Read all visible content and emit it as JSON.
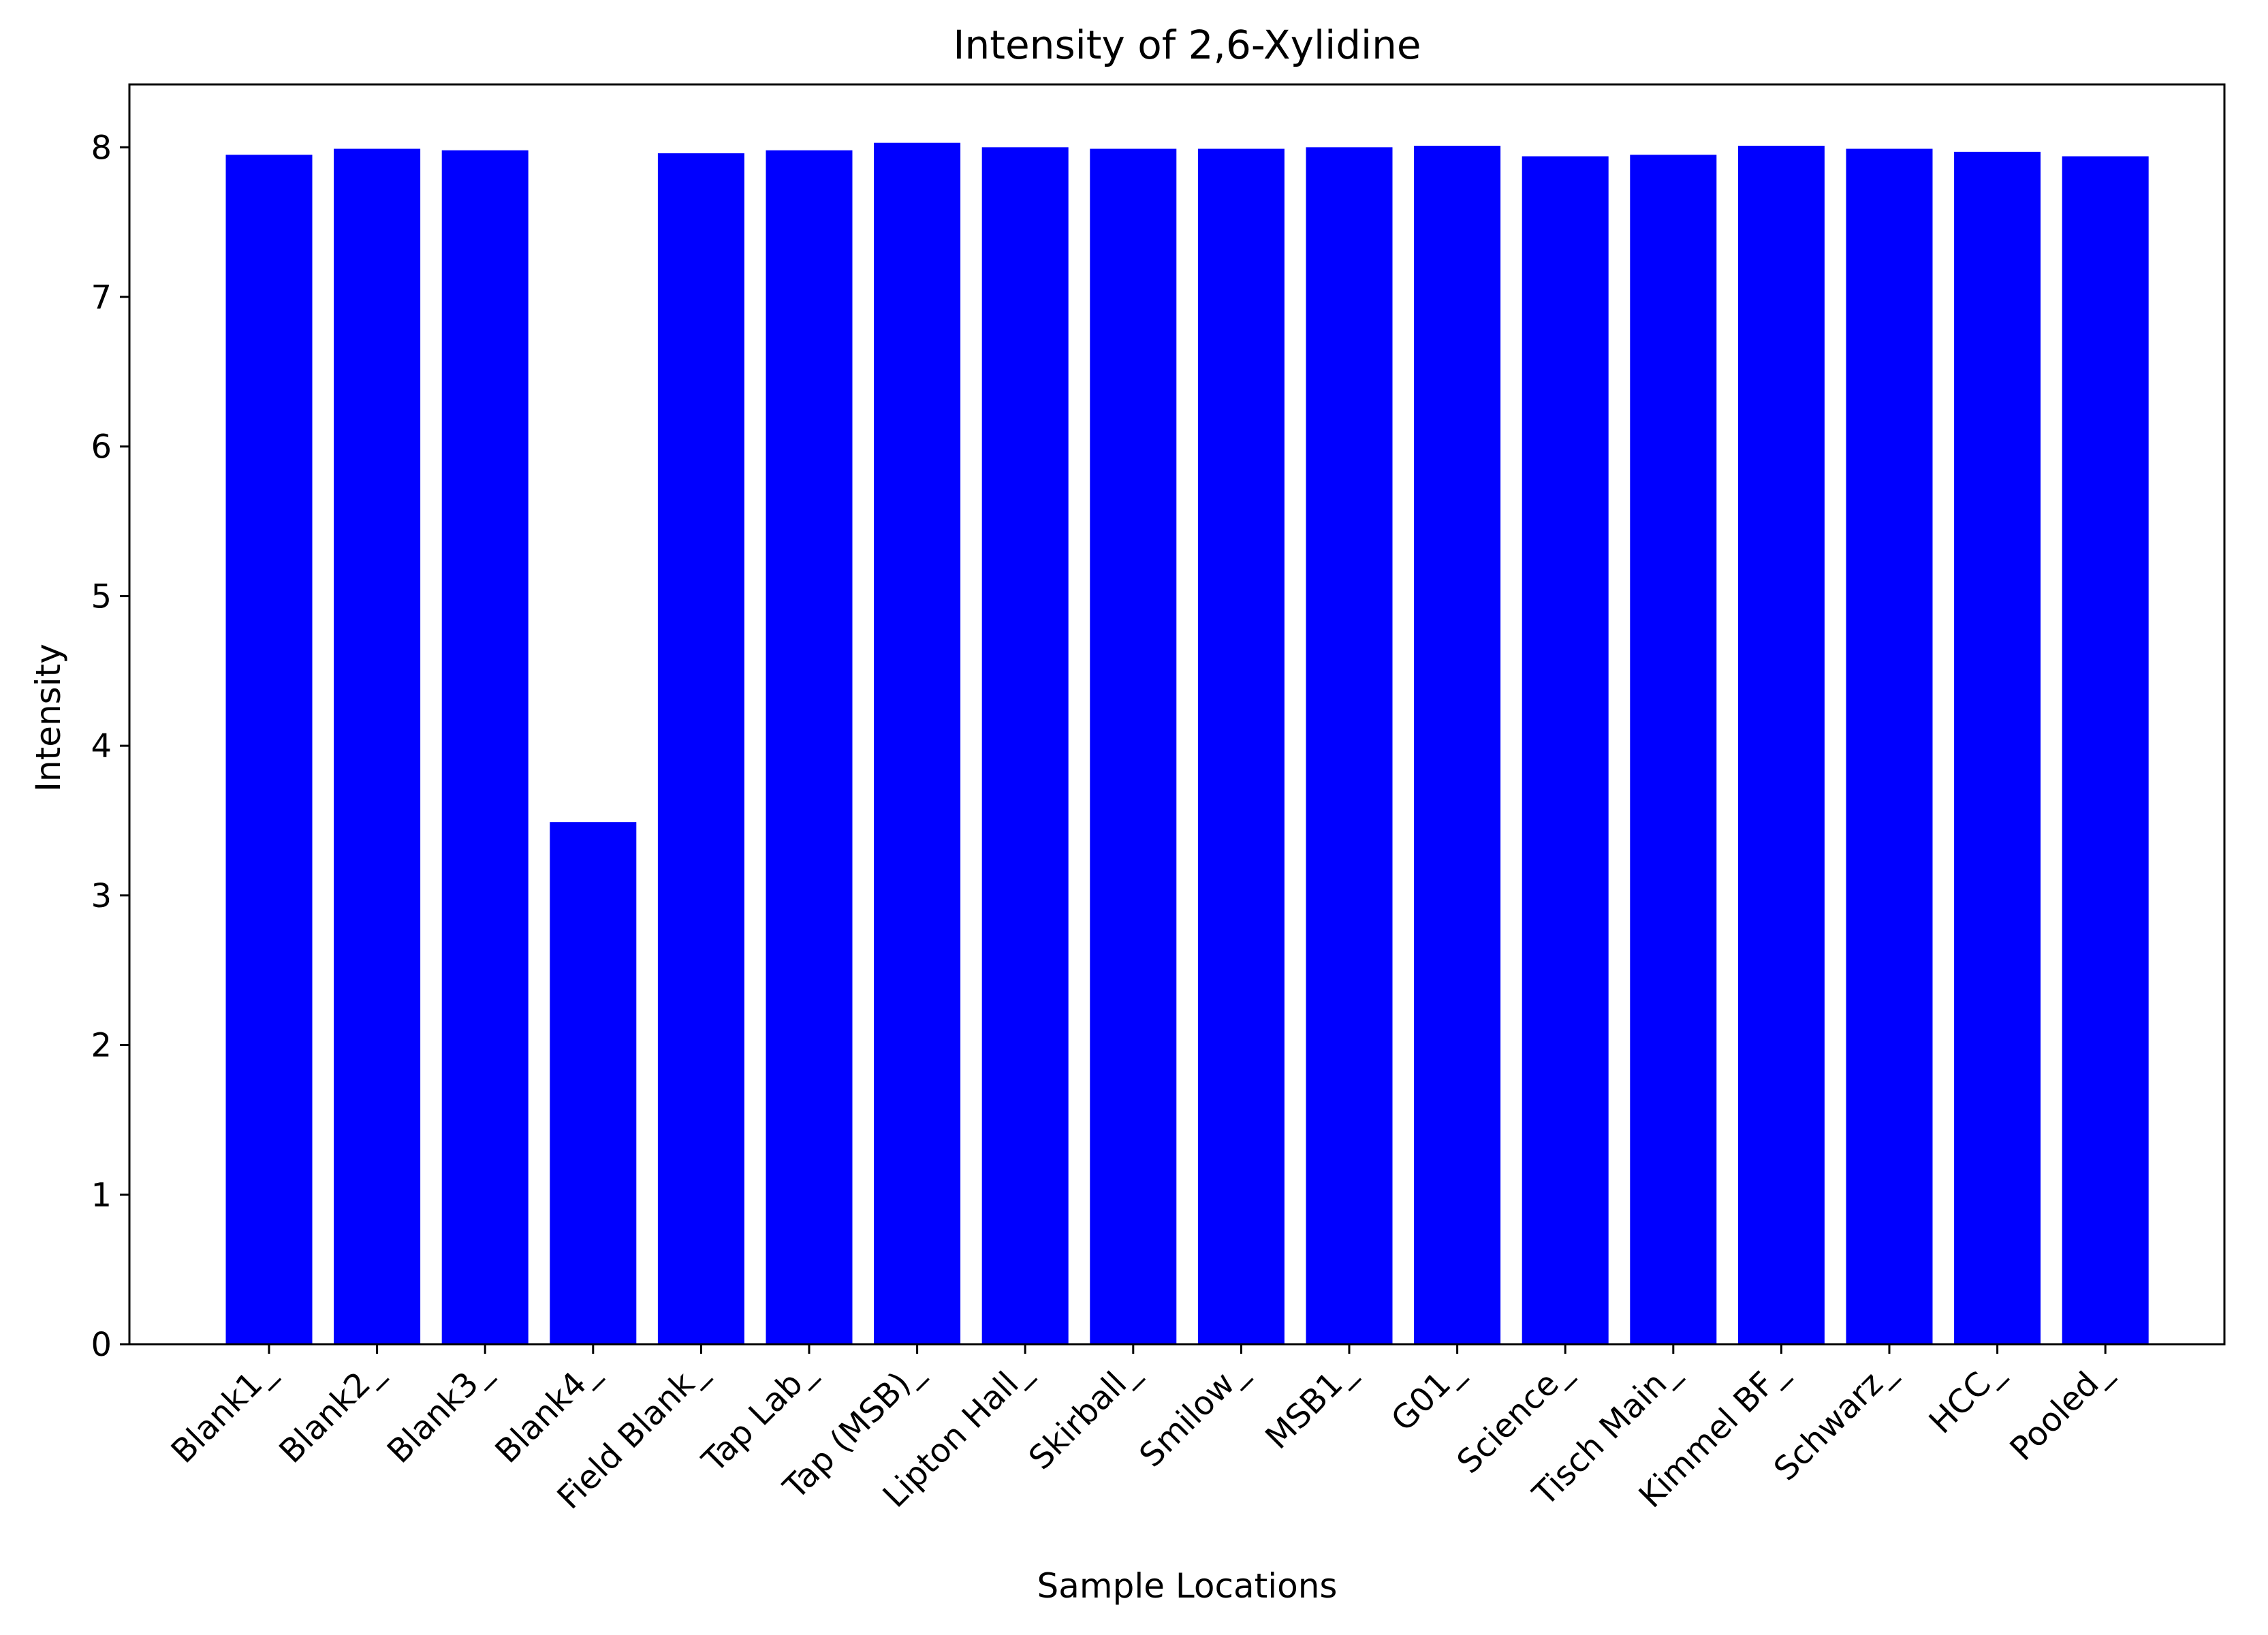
{
  "chart_data": {
    "type": "bar",
    "title": "Intensity of 2,6-Xylidine",
    "xlabel": "Sample Locations",
    "ylabel": "Intensity",
    "categories": [
      "Blank1_",
      "Blank2_",
      "Blank3_",
      "Blank4_",
      "Field Blank_",
      "Tap Lab_",
      "Tap (MSB)_",
      "Lipton Hall_",
      "Skirball_",
      "Smilow_",
      "MSB1_",
      "G01_",
      "Science_",
      "Tisch Main_",
      "Kimmel BF_",
      "Schwarz_",
      "HCC_",
      "Pooled_"
    ],
    "values": [
      7.95,
      7.99,
      7.98,
      3.49,
      7.96,
      7.98,
      8.03,
      8.0,
      7.99,
      7.99,
      8.0,
      8.01,
      7.94,
      7.95,
      8.01,
      7.99,
      7.97,
      7.94
    ],
    "ylim": [
      0,
      8.42
    ],
    "yticks": [
      "0",
      "1",
      "2",
      "3",
      "4",
      "5",
      "6",
      "7",
      "8"
    ],
    "bar_color": "#0000ff",
    "grid": false,
    "legend": "none"
  }
}
